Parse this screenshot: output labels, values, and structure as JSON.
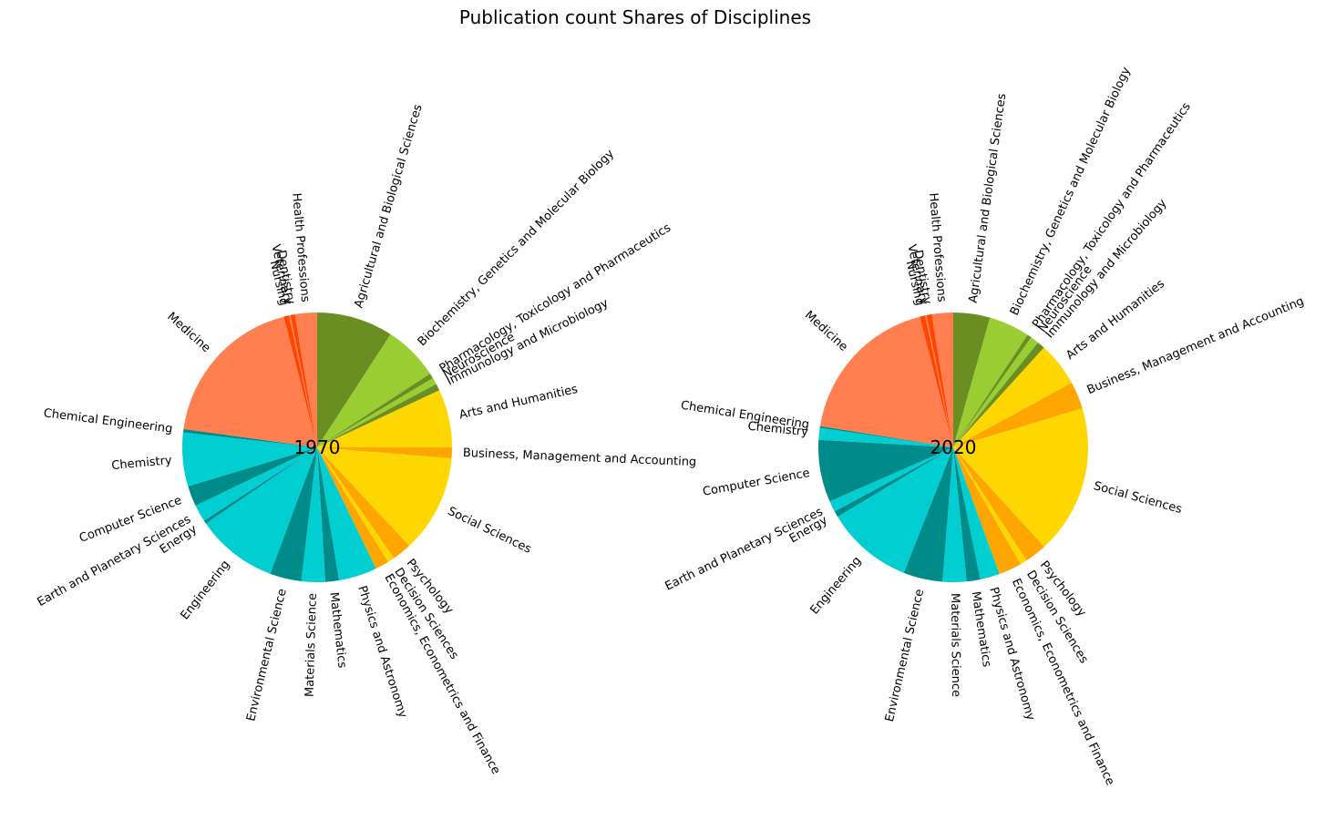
{
  "figure": {
    "title": "Publication count Shares of Disciplines"
  },
  "chart_data": [
    {
      "type": "pie",
      "title": "1970",
      "start_angle_deg": 90,
      "direction": "clockwise",
      "slices": [
        {
          "label": "Agricultural and Biological Sciences",
          "value": 9.0,
          "color": "#6b8e23"
        },
        {
          "label": "Biochemistry, Genetics and Molecular Biology",
          "value": 6.5,
          "color": "#9acd32"
        },
        {
          "label": "Pharmacology, Toxicology and Pharmaceutics",
          "value": 0.6,
          "color": "#6b8e23"
        },
        {
          "label": "Neuroscience",
          "value": 0.8,
          "color": "#9acd32"
        },
        {
          "label": "Immunology and Microbiology",
          "value": 0.8,
          "color": "#6b8e23"
        },
        {
          "label": "Arts and Humanities",
          "value": 6.8,
          "color": "#ffd700"
        },
        {
          "label": "Business, Management and Accounting",
          "value": 1.3,
          "color": "#ffa500"
        },
        {
          "label": "Social Sciences",
          "value": 11.5,
          "color": "#ffd700"
        },
        {
          "label": "Psychology",
          "value": 2.3,
          "color": "#ffa500"
        },
        {
          "label": "Decision Sciences",
          "value": 0.8,
          "color": "#ffd700"
        },
        {
          "label": "Economics, Econometrics and Finance",
          "value": 1.6,
          "color": "#ffa500"
        },
        {
          "label": "Physics and Astronomy",
          "value": 4.5,
          "color": "#00ced1"
        },
        {
          "label": "Mathematics",
          "value": 1.6,
          "color": "#008b8b"
        },
        {
          "label": "Materials Science",
          "value": 2.8,
          "color": "#00ced1"
        },
        {
          "label": "Environmental Science",
          "value": 3.7,
          "color": "#008b8b"
        },
        {
          "label": "Engineering",
          "value": 9.6,
          "color": "#00ced1"
        },
        {
          "label": "Energy",
          "value": 0.4,
          "color": "#008b8b"
        },
        {
          "label": "Earth and Planetary Sciences",
          "value": 2.0,
          "color": "#00ced1"
        },
        {
          "label": "Computer Science",
          "value": 2.4,
          "color": "#008b8b"
        },
        {
          "label": "Chemistry",
          "value": 6.3,
          "color": "#00ced1"
        },
        {
          "label": "Chemical Engineering",
          "value": 0.4,
          "color": "#008b8b"
        },
        {
          "label": "Medicine",
          "value": 18.5,
          "color": "#ff7f50"
        },
        {
          "label": "Nursing",
          "value": 0.6,
          "color": "#ff4500"
        },
        {
          "label": "Veterinary",
          "value": 0.2,
          "color": "#ff7f50"
        },
        {
          "label": "Dentistry",
          "value": 0.5,
          "color": "#ff4500"
        },
        {
          "label": "Health Professions",
          "value": 2.6,
          "color": "#ff7f50"
        }
      ]
    },
    {
      "type": "pie",
      "title": "2020",
      "start_angle_deg": 90,
      "direction": "clockwise",
      "slices": [
        {
          "label": "Agricultural and Biological Sciences",
          "value": 4.3,
          "color": "#6b8e23"
        },
        {
          "label": "Biochemistry, Genetics and Molecular Biology",
          "value": 4.8,
          "color": "#9acd32"
        },
        {
          "label": "Pharmacology, Toxicology and Pharmaceutics",
          "value": 0.5,
          "color": "#6b8e23"
        },
        {
          "label": "Neuroscience",
          "value": 1.0,
          "color": "#9acd32"
        },
        {
          "label": "Immunology and Microbiology",
          "value": 0.9,
          "color": "#6b8e23"
        },
        {
          "label": "Arts and Humanities",
          "value": 5.2,
          "color": "#ffd700"
        },
        {
          "label": "Business, Management and Accounting",
          "value": 3.2,
          "color": "#ffa500"
        },
        {
          "label": "Social Sciences",
          "value": 17.5,
          "color": "#ffd700"
        },
        {
          "label": "Psychology",
          "value": 2.6,
          "color": "#ffa500"
        },
        {
          "label": "Decision Sciences",
          "value": 0.8,
          "color": "#ffd700"
        },
        {
          "label": "Economics, Econometrics and Finance",
          "value": 2.7,
          "color": "#ffa500"
        },
        {
          "label": "Physics and Astronomy",
          "value": 2.3,
          "color": "#00ced1"
        },
        {
          "label": "Mathematics",
          "value": 1.6,
          "color": "#008b8b"
        },
        {
          "label": "Materials Science",
          "value": 2.8,
          "color": "#00ced1"
        },
        {
          "label": "Environmental Science",
          "value": 4.6,
          "color": "#008b8b"
        },
        {
          "label": "Engineering",
          "value": 10.2,
          "color": "#00ced1"
        },
        {
          "label": "Energy",
          "value": 0.7,
          "color": "#008b8b"
        },
        {
          "label": "Earth and Planetary Sciences",
          "value": 1.3,
          "color": "#00ced1"
        },
        {
          "label": "Computer Science",
          "value": 7.3,
          "color": "#008b8b"
        },
        {
          "label": "Chemistry",
          "value": 1.4,
          "color": "#00ced1"
        },
        {
          "label": "Chemical Engineering",
          "value": 0.2,
          "color": "#008b8b"
        },
        {
          "label": "Medicine",
          "value": 18.1,
          "color": "#ff7f50"
        },
        {
          "label": "Nursing",
          "value": 0.6,
          "color": "#ff4500"
        },
        {
          "label": "Veterinary",
          "value": 0.2,
          "color": "#ff7f50"
        },
        {
          "label": "Dentistry",
          "value": 0.6,
          "color": "#ff4500"
        },
        {
          "label": "Health Professions",
          "value": 2.5,
          "color": "#ff7f50"
        }
      ]
    }
  ]
}
